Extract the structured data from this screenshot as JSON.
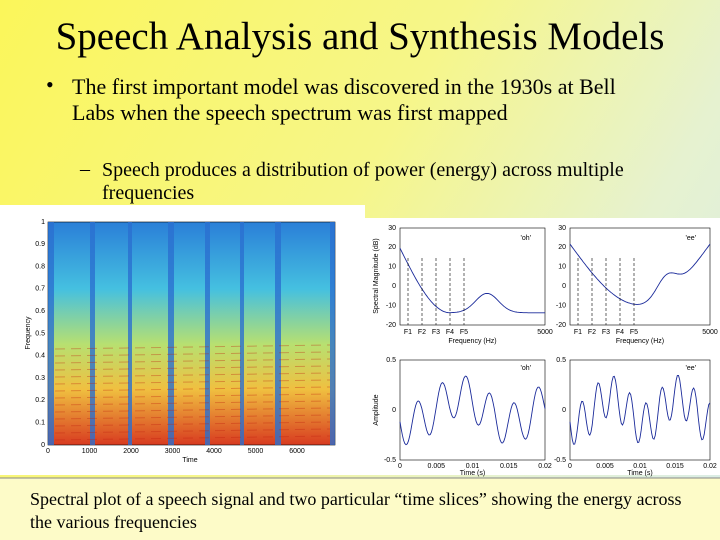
{
  "title": "Speech Analysis and Synthesis Models",
  "bullets": [
    {
      "text": "The first important model was discovered in the 1930s at Bell Labs when the speech spectrum was first mapped",
      "sub": [
        "Speech produces a distribution of power (energy) across multiple frequencies"
      ]
    }
  ],
  "figure": {
    "spectrogram": {
      "xlabel": "Time",
      "ylabel": "Frequency",
      "xticks": [
        "0",
        "1000",
        "2000",
        "3000",
        "4000",
        "5000",
        "6000"
      ],
      "yticks": [
        "1",
        "0.9",
        "0.8",
        "0.7",
        "0.6",
        "0.5",
        "0.4",
        "0.3",
        "0.2",
        "0.1",
        "0"
      ]
    },
    "spectra": {
      "ylabel": "Spectral Magnitude (dB)",
      "xlabel": "Frequency (Hz)",
      "yticks": [
        "30",
        "20",
        "10",
        "0",
        "-10",
        "-20"
      ],
      "xticks": [
        "5000"
      ],
      "formants": [
        "F1",
        "F2",
        "F3",
        "F4",
        "F5"
      ],
      "labels": [
        "'oh'",
        "'ee'"
      ]
    },
    "waveforms": {
      "ylabel": "Amplitude",
      "xlabel": "Time (s)",
      "yticks": [
        "0.5",
        "0",
        "-0.5"
      ],
      "xticks": [
        "0",
        "0.005",
        "0.01",
        "0.015",
        "0.02"
      ]
    }
  },
  "caption": "Spectral plot of a speech signal and two particular “time slices” showing the energy across the various frequencies"
}
